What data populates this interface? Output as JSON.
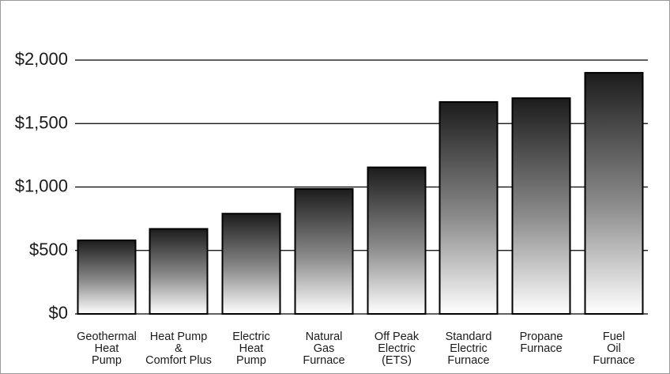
{
  "chart_data": {
    "type": "bar",
    "title": "",
    "xlabel": "",
    "ylabel": "",
    "ylim": [
      0,
      2000
    ],
    "yticks": [
      {
        "value": 0,
        "label": "$0"
      },
      {
        "value": 500,
        "label": "$500"
      },
      {
        "value": 1000,
        "label": "$1,000"
      },
      {
        "value": 1500,
        "label": "$1,500"
      },
      {
        "value": 2000,
        "label": "$2,000"
      }
    ],
    "grid": true,
    "categories": [
      [
        "Geothermal",
        "Heat",
        "Pump"
      ],
      [
        "Heat Pump",
        "&",
        "Comfort Plus"
      ],
      [
        "Electric",
        "Heat",
        "Pump"
      ],
      [
        "Natural",
        "Gas",
        "Furnace"
      ],
      [
        "Off Peak",
        "Electric",
        "(ETS)"
      ],
      [
        "Standard",
        "Electric",
        "Furnace"
      ],
      [
        "Propane",
        "Furnace"
      ],
      [
        "Fuel",
        "Oil",
        "Furnace"
      ]
    ],
    "values": [
      580,
      670,
      790,
      985,
      1155,
      1670,
      1700,
      1900
    ],
    "colors": {
      "bar_top": "#1c1c1c",
      "bar_bottom": "#ffffff",
      "bar_border": "#000000",
      "grid": "#000000"
    }
  }
}
